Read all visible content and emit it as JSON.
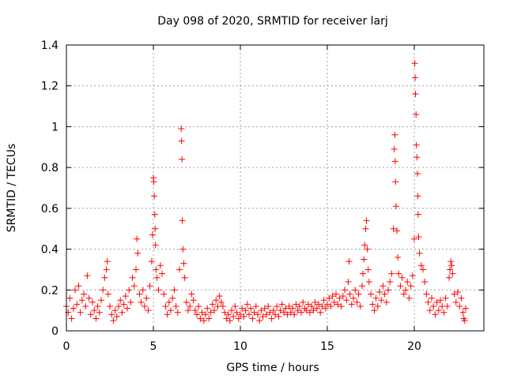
{
  "chart_data": {
    "type": "scatter",
    "title": "Day 098 of 2020, SRMTID for receiver larj",
    "xlabel": "GPS time / hours",
    "ylabel": "SRMTID / TECUs",
    "xlim": [
      0,
      24
    ],
    "ylim": [
      0,
      1.4
    ],
    "xticks": [
      0,
      5,
      10,
      15,
      20
    ],
    "xtick_labels": [
      "0",
      "5",
      "10",
      "15",
      "20"
    ],
    "yticks": [
      0,
      0.2,
      0.4,
      0.6,
      0.8,
      1,
      1.2,
      1.4
    ],
    "ytick_labels": [
      "0",
      "0.2",
      "0.4",
      "0.6",
      "0.8",
      "1",
      "1.2",
      "1.4"
    ],
    "grid": true,
    "marker": "+",
    "color": "#ff0000",
    "series": [
      {
        "name": "SRMTID",
        "points": [
          [
            0.0,
            0.12
          ],
          [
            0.1,
            0.09
          ],
          [
            0.2,
            0.16
          ],
          [
            0.3,
            0.06
          ],
          [
            0.4,
            0.11
          ],
          [
            0.5,
            0.2
          ],
          [
            0.6,
            0.13
          ],
          [
            0.7,
            0.22
          ],
          [
            0.8,
            0.09
          ],
          [
            0.9,
            0.15
          ],
          [
            1.0,
            0.18
          ],
          [
            1.1,
            0.12
          ],
          [
            1.2,
            0.27
          ],
          [
            1.3,
            0.16
          ],
          [
            1.4,
            0.08
          ],
          [
            1.5,
            0.14
          ],
          [
            1.6,
            0.1
          ],
          [
            1.7,
            0.06
          ],
          [
            1.8,
            0.12
          ],
          [
            1.9,
            0.09
          ],
          [
            2.0,
            0.15
          ],
          [
            2.1,
            0.2
          ],
          [
            2.2,
            0.26
          ],
          [
            2.3,
            0.3
          ],
          [
            2.35,
            0.34
          ],
          [
            2.4,
            0.18
          ],
          [
            2.5,
            0.12
          ],
          [
            2.6,
            0.08
          ],
          [
            2.7,
            0.05
          ],
          [
            2.8,
            0.1
          ],
          [
            2.9,
            0.07
          ],
          [
            3.0,
            0.12
          ],
          [
            3.1,
            0.15
          ],
          [
            3.2,
            0.09
          ],
          [
            3.3,
            0.13
          ],
          [
            3.4,
            0.17
          ],
          [
            3.5,
            0.11
          ],
          [
            3.6,
            0.2
          ],
          [
            3.7,
            0.14
          ],
          [
            3.8,
            0.26
          ],
          [
            3.9,
            0.22
          ],
          [
            4.0,
            0.3
          ],
          [
            4.05,
            0.45
          ],
          [
            4.1,
            0.38
          ],
          [
            4.2,
            0.18
          ],
          [
            4.3,
            0.14
          ],
          [
            4.4,
            0.2
          ],
          [
            4.5,
            0.12
          ],
          [
            4.6,
            0.16
          ],
          [
            4.7,
            0.1
          ],
          [
            4.8,
            0.22
          ],
          [
            4.9,
            0.34
          ],
          [
            4.95,
            0.47
          ],
          [
            5.0,
            0.75
          ],
          [
            5.02,
            0.73
          ],
          [
            5.05,
            0.66
          ],
          [
            5.08,
            0.57
          ],
          [
            5.1,
            0.5
          ],
          [
            5.12,
            0.42
          ],
          [
            5.15,
            0.3
          ],
          [
            5.2,
            0.26
          ],
          [
            5.3,
            0.2
          ],
          [
            5.4,
            0.32
          ],
          [
            5.5,
            0.28
          ],
          [
            5.6,
            0.18
          ],
          [
            5.7,
            0.12
          ],
          [
            5.8,
            0.08
          ],
          [
            5.9,
            0.14
          ],
          [
            6.0,
            0.1
          ],
          [
            6.1,
            0.16
          ],
          [
            6.2,
            0.2
          ],
          [
            6.3,
            0.12
          ],
          [
            6.4,
            0.09
          ],
          [
            6.5,
            0.3
          ],
          [
            6.6,
            0.99
          ],
          [
            6.62,
            0.93
          ],
          [
            6.64,
            0.84
          ],
          [
            6.66,
            0.54
          ],
          [
            6.7,
            0.4
          ],
          [
            6.75,
            0.33
          ],
          [
            6.8,
            0.26
          ],
          [
            6.9,
            0.14
          ],
          [
            7.0,
            0.1
          ],
          [
            7.1,
            0.12
          ],
          [
            7.2,
            0.18
          ],
          [
            7.3,
            0.15
          ],
          [
            7.4,
            0.1
          ],
          [
            7.5,
            0.08
          ],
          [
            7.6,
            0.12
          ],
          [
            7.7,
            0.06
          ],
          [
            7.8,
            0.09
          ],
          [
            7.9,
            0.05
          ],
          [
            8.0,
            0.08
          ],
          [
            8.1,
            0.11
          ],
          [
            8.2,
            0.06
          ],
          [
            8.3,
            0.09
          ],
          [
            8.4,
            0.13
          ],
          [
            8.5,
            0.1
          ],
          [
            8.6,
            0.15
          ],
          [
            8.7,
            0.12
          ],
          [
            8.8,
            0.17
          ],
          [
            8.9,
            0.14
          ],
          [
            9.0,
            0.12
          ],
          [
            9.1,
            0.09
          ],
          [
            9.2,
            0.06
          ],
          [
            9.3,
            0.08
          ],
          [
            9.4,
            0.05
          ],
          [
            9.5,
            0.1
          ],
          [
            9.6,
            0.07
          ],
          [
            9.7,
            0.12
          ],
          [
            9.8,
            0.09
          ],
          [
            9.9,
            0.06
          ],
          [
            10.0,
            0.08
          ],
          [
            10.1,
            0.11
          ],
          [
            10.2,
            0.07
          ],
          [
            10.3,
            0.1
          ],
          [
            10.4,
            0.13
          ],
          [
            10.5,
            0.08
          ],
          [
            10.6,
            0.11
          ],
          [
            10.7,
            0.06
          ],
          [
            10.8,
            0.09
          ],
          [
            10.9,
            0.12
          ],
          [
            11.0,
            0.08
          ],
          [
            11.1,
            0.05
          ],
          [
            11.2,
            0.1
          ],
          [
            11.3,
            0.07
          ],
          [
            11.4,
            0.11
          ],
          [
            11.5,
            0.08
          ],
          [
            11.6,
            0.12
          ],
          [
            11.7,
            0.09
          ],
          [
            11.8,
            0.06
          ],
          [
            11.9,
            0.1
          ],
          [
            12.0,
            0.08
          ],
          [
            12.1,
            0.12
          ],
          [
            12.2,
            0.07
          ],
          [
            12.3,
            0.1
          ],
          [
            12.4,
            0.13
          ],
          [
            12.5,
            0.09
          ],
          [
            12.6,
            0.11
          ],
          [
            12.7,
            0.08
          ],
          [
            12.8,
            0.12
          ],
          [
            12.9,
            0.09
          ],
          [
            13.0,
            0.11
          ],
          [
            13.1,
            0.08
          ],
          [
            13.2,
            0.13
          ],
          [
            13.3,
            0.1
          ],
          [
            13.4,
            0.12
          ],
          [
            13.5,
            0.09
          ],
          [
            13.6,
            0.14
          ],
          [
            13.7,
            0.11
          ],
          [
            13.8,
            0.1
          ],
          [
            13.9,
            0.13
          ],
          [
            14.0,
            0.09
          ],
          [
            14.1,
            0.12
          ],
          [
            14.2,
            0.1
          ],
          [
            14.3,
            0.14
          ],
          [
            14.4,
            0.11
          ],
          [
            14.5,
            0.13
          ],
          [
            14.6,
            0.09
          ],
          [
            14.7,
            0.12
          ],
          [
            14.8,
            0.15
          ],
          [
            14.9,
            0.11
          ],
          [
            15.0,
            0.13
          ],
          [
            15.1,
            0.16
          ],
          [
            15.2,
            0.12
          ],
          [
            15.3,
            0.17
          ],
          [
            15.4,
            0.14
          ],
          [
            15.5,
            0.18
          ],
          [
            15.6,
            0.13
          ],
          [
            15.7,
            0.16
          ],
          [
            15.8,
            0.12
          ],
          [
            15.9,
            0.17
          ],
          [
            16.0,
            0.2
          ],
          [
            16.1,
            0.15
          ],
          [
            16.2,
            0.24
          ],
          [
            16.25,
            0.34
          ],
          [
            16.3,
            0.18
          ],
          [
            16.4,
            0.13
          ],
          [
            16.5,
            0.16
          ],
          [
            16.6,
            0.2
          ],
          [
            16.7,
            0.14
          ],
          [
            16.8,
            0.18
          ],
          [
            16.9,
            0.12
          ],
          [
            17.0,
            0.22
          ],
          [
            17.05,
            0.28
          ],
          [
            17.1,
            0.35
          ],
          [
            17.15,
            0.42
          ],
          [
            17.2,
            0.5
          ],
          [
            17.25,
            0.54
          ],
          [
            17.3,
            0.4
          ],
          [
            17.35,
            0.3
          ],
          [
            17.4,
            0.24
          ],
          [
            17.5,
            0.18
          ],
          [
            17.6,
            0.13
          ],
          [
            17.7,
            0.1
          ],
          [
            17.8,
            0.16
          ],
          [
            17.9,
            0.12
          ],
          [
            18.0,
            0.19
          ],
          [
            18.1,
            0.15
          ],
          [
            18.2,
            0.22
          ],
          [
            18.3,
            0.18
          ],
          [
            18.4,
            0.14
          ],
          [
            18.5,
            0.2
          ],
          [
            18.6,
            0.24
          ],
          [
            18.7,
            0.28
          ],
          [
            18.8,
            0.5
          ],
          [
            18.85,
            0.89
          ],
          [
            18.88,
            0.96
          ],
          [
            18.9,
            0.83
          ],
          [
            18.92,
            0.73
          ],
          [
            18.95,
            0.61
          ],
          [
            19.0,
            0.49
          ],
          [
            19.05,
            0.36
          ],
          [
            19.1,
            0.28
          ],
          [
            19.2,
            0.22
          ],
          [
            19.3,
            0.26
          ],
          [
            19.4,
            0.18
          ],
          [
            19.5,
            0.2
          ],
          [
            19.6,
            0.24
          ],
          [
            19.7,
            0.16
          ],
          [
            19.8,
            0.22
          ],
          [
            19.9,
            0.27
          ],
          [
            20.0,
            0.45
          ],
          [
            20.03,
            1.31
          ],
          [
            20.05,
            1.24
          ],
          [
            20.07,
            1.16
          ],
          [
            20.1,
            1.06
          ],
          [
            20.12,
            0.91
          ],
          [
            20.15,
            0.85
          ],
          [
            20.18,
            0.77
          ],
          [
            20.2,
            0.66
          ],
          [
            20.22,
            0.57
          ],
          [
            20.25,
            0.46
          ],
          [
            20.3,
            0.38
          ],
          [
            20.4,
            0.32
          ],
          [
            20.5,
            0.3
          ],
          [
            20.6,
            0.24
          ],
          [
            20.7,
            0.18
          ],
          [
            20.8,
            0.14
          ],
          [
            20.9,
            0.1
          ],
          [
            21.0,
            0.16
          ],
          [
            21.1,
            0.12
          ],
          [
            21.2,
            0.08
          ],
          [
            21.3,
            0.14
          ],
          [
            21.4,
            0.1
          ],
          [
            21.5,
            0.15
          ],
          [
            21.6,
            0.12
          ],
          [
            21.7,
            0.09
          ],
          [
            21.8,
            0.16
          ],
          [
            21.9,
            0.12
          ],
          [
            22.0,
            0.26
          ],
          [
            22.05,
            0.3
          ],
          [
            22.1,
            0.34
          ],
          [
            22.15,
            0.32
          ],
          [
            22.2,
            0.28
          ],
          [
            22.3,
            0.18
          ],
          [
            22.4,
            0.14
          ],
          [
            22.5,
            0.19
          ],
          [
            22.6,
            0.12
          ],
          [
            22.7,
            0.16
          ],
          [
            22.8,
            0.09
          ],
          [
            22.85,
            0.06
          ],
          [
            22.9,
            0.05
          ],
          [
            22.95,
            0.11
          ]
        ]
      }
    ]
  }
}
